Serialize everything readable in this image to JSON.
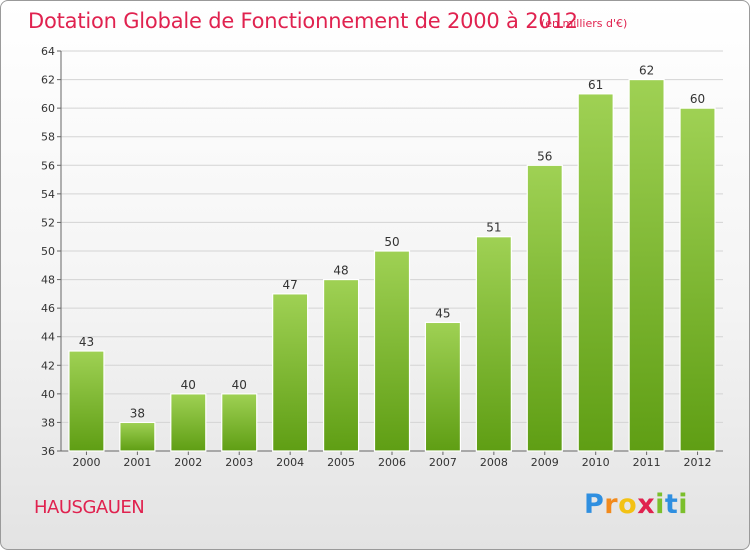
{
  "title": "Dotation Globale de Fonctionnement de 2000 à 2012",
  "unit_note": "(en milliers d'€)",
  "place_name": "HAUSGAUEN",
  "logo_text": "Proxiti",
  "colors": {
    "accent": "#e0224f",
    "bar_top": "#9fd154",
    "bar_bottom": "#5f9e14"
  },
  "chart_data": {
    "type": "bar",
    "categories": [
      "2000",
      "2001",
      "2002",
      "2003",
      "2004",
      "2005",
      "2006",
      "2007",
      "2008",
      "2009",
      "2010",
      "2011",
      "2012"
    ],
    "values": [
      43,
      38,
      40,
      40,
      47,
      48,
      50,
      45,
      51,
      56,
      61,
      62,
      60
    ],
    "ylim": [
      36,
      64
    ],
    "yticks": [
      36,
      38,
      40,
      42,
      44,
      46,
      48,
      50,
      52,
      54,
      56,
      58,
      60,
      62,
      64
    ],
    "grid": true
  }
}
